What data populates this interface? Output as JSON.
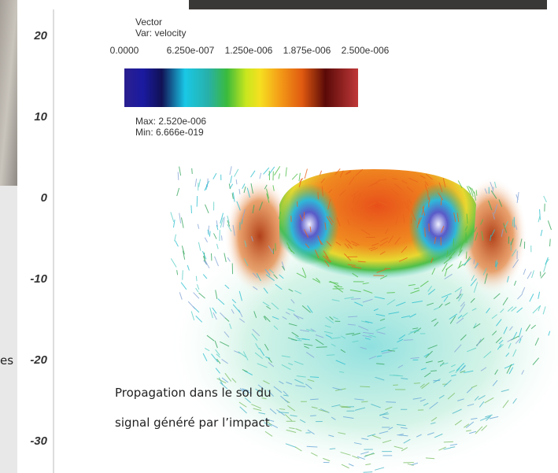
{
  "legend": {
    "title": "Vector",
    "variable": "Var: velocity",
    "scale_labels": [
      "0.0000",
      "6.250e-007",
      "1.250e-006",
      "1.875e-006",
      "2.500e-006"
    ],
    "max": "Max:  2.520e-006",
    "min": "Min:  6.666e-019"
  },
  "axis": {
    "ticks": [
      "20",
      "10",
      "0",
      "-10",
      "-20",
      "-30"
    ]
  },
  "side_fragment": "es",
  "caption": [
    "Propagation dans le sol du",
    "signal généré par l’impact"
  ]
}
